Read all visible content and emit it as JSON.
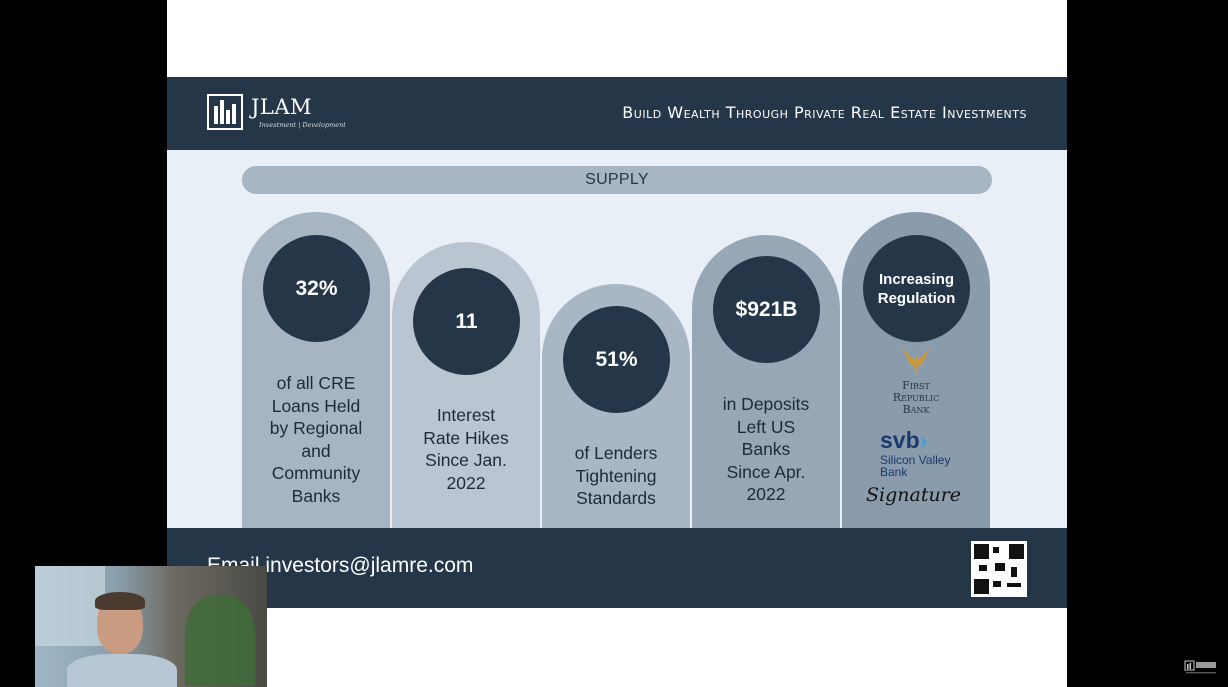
{
  "header": {
    "logo_text": "JLAM",
    "logo_sub": "Investment | Development",
    "tagline": "Build Wealth Through Private Real Estate Investments"
  },
  "section": {
    "label": "SUPPLY"
  },
  "stats": [
    {
      "value": "32%",
      "desc": [
        "of all CRE",
        "Loans Held",
        "by Regional",
        "and",
        "Community",
        "Banks"
      ]
    },
    {
      "value": "11",
      "desc": [
        "Interest",
        "Rate Hikes",
        "Since Jan.",
        "2022"
      ]
    },
    {
      "value": "51%",
      "desc": [
        "of Lenders",
        "Tightening",
        "Standards"
      ]
    },
    {
      "value": "$921B",
      "desc": [
        "in Deposits",
        "Left US",
        "Banks",
        "Since Apr.",
        "2022"
      ]
    },
    {
      "value": "Increasing Regulation",
      "desc": []
    }
  ],
  "banks": {
    "first_republic": [
      "First",
      "Republic",
      "Bank"
    ],
    "svb": "svb",
    "svb_sub": [
      "Silicon Valley",
      "Bank"
    ],
    "signature": "Signature"
  },
  "footer": {
    "email": "Email investors@jlamre.com"
  },
  "colors": {
    "navy": "#243647",
    "pill1": "#a7b5c2",
    "pill2": "#b9c5d0",
    "pill3": "#a9b6c3",
    "pill4": "#97a7b6",
    "pill5": "#8a9bab",
    "bg": "#e8eff6"
  }
}
